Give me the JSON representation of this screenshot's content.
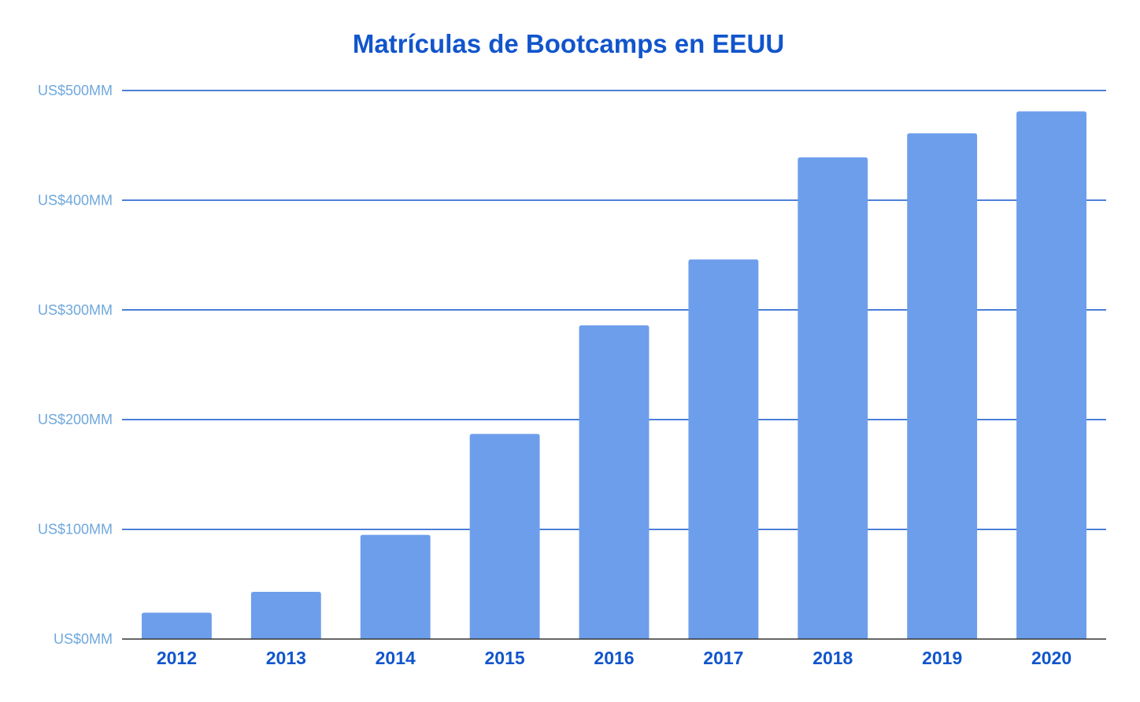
{
  "chart_data": {
    "type": "bar",
    "title": "Matrículas de Bootcamps en EEUU",
    "xlabel": "",
    "ylabel": "",
    "categories": [
      "2012",
      "2013",
      "2014",
      "2015",
      "2016",
      "2017",
      "2018",
      "2019",
      "2020"
    ],
    "series": [
      {
        "values": [
          24,
          43,
          95,
          187,
          286,
          346,
          439,
          461,
          481
        ]
      }
    ],
    "ylim": [
      0,
      500
    ],
    "y_ticks": [
      0,
      100,
      200,
      300,
      400,
      500
    ],
    "y_tick_labels": [
      "US$0MM",
      "US$100MM",
      "US$200MM",
      "US$300MM",
      "US$400MM",
      "US$500MM"
    ],
    "grid": true,
    "legend": "none"
  },
  "colors": {
    "title": "#1155cc",
    "bar": "#6d9eeb",
    "gridline": "#1155cc",
    "baseline": "#333333",
    "y_tick_label": "#6fa8dc",
    "x_tick_label": "#1155cc"
  }
}
